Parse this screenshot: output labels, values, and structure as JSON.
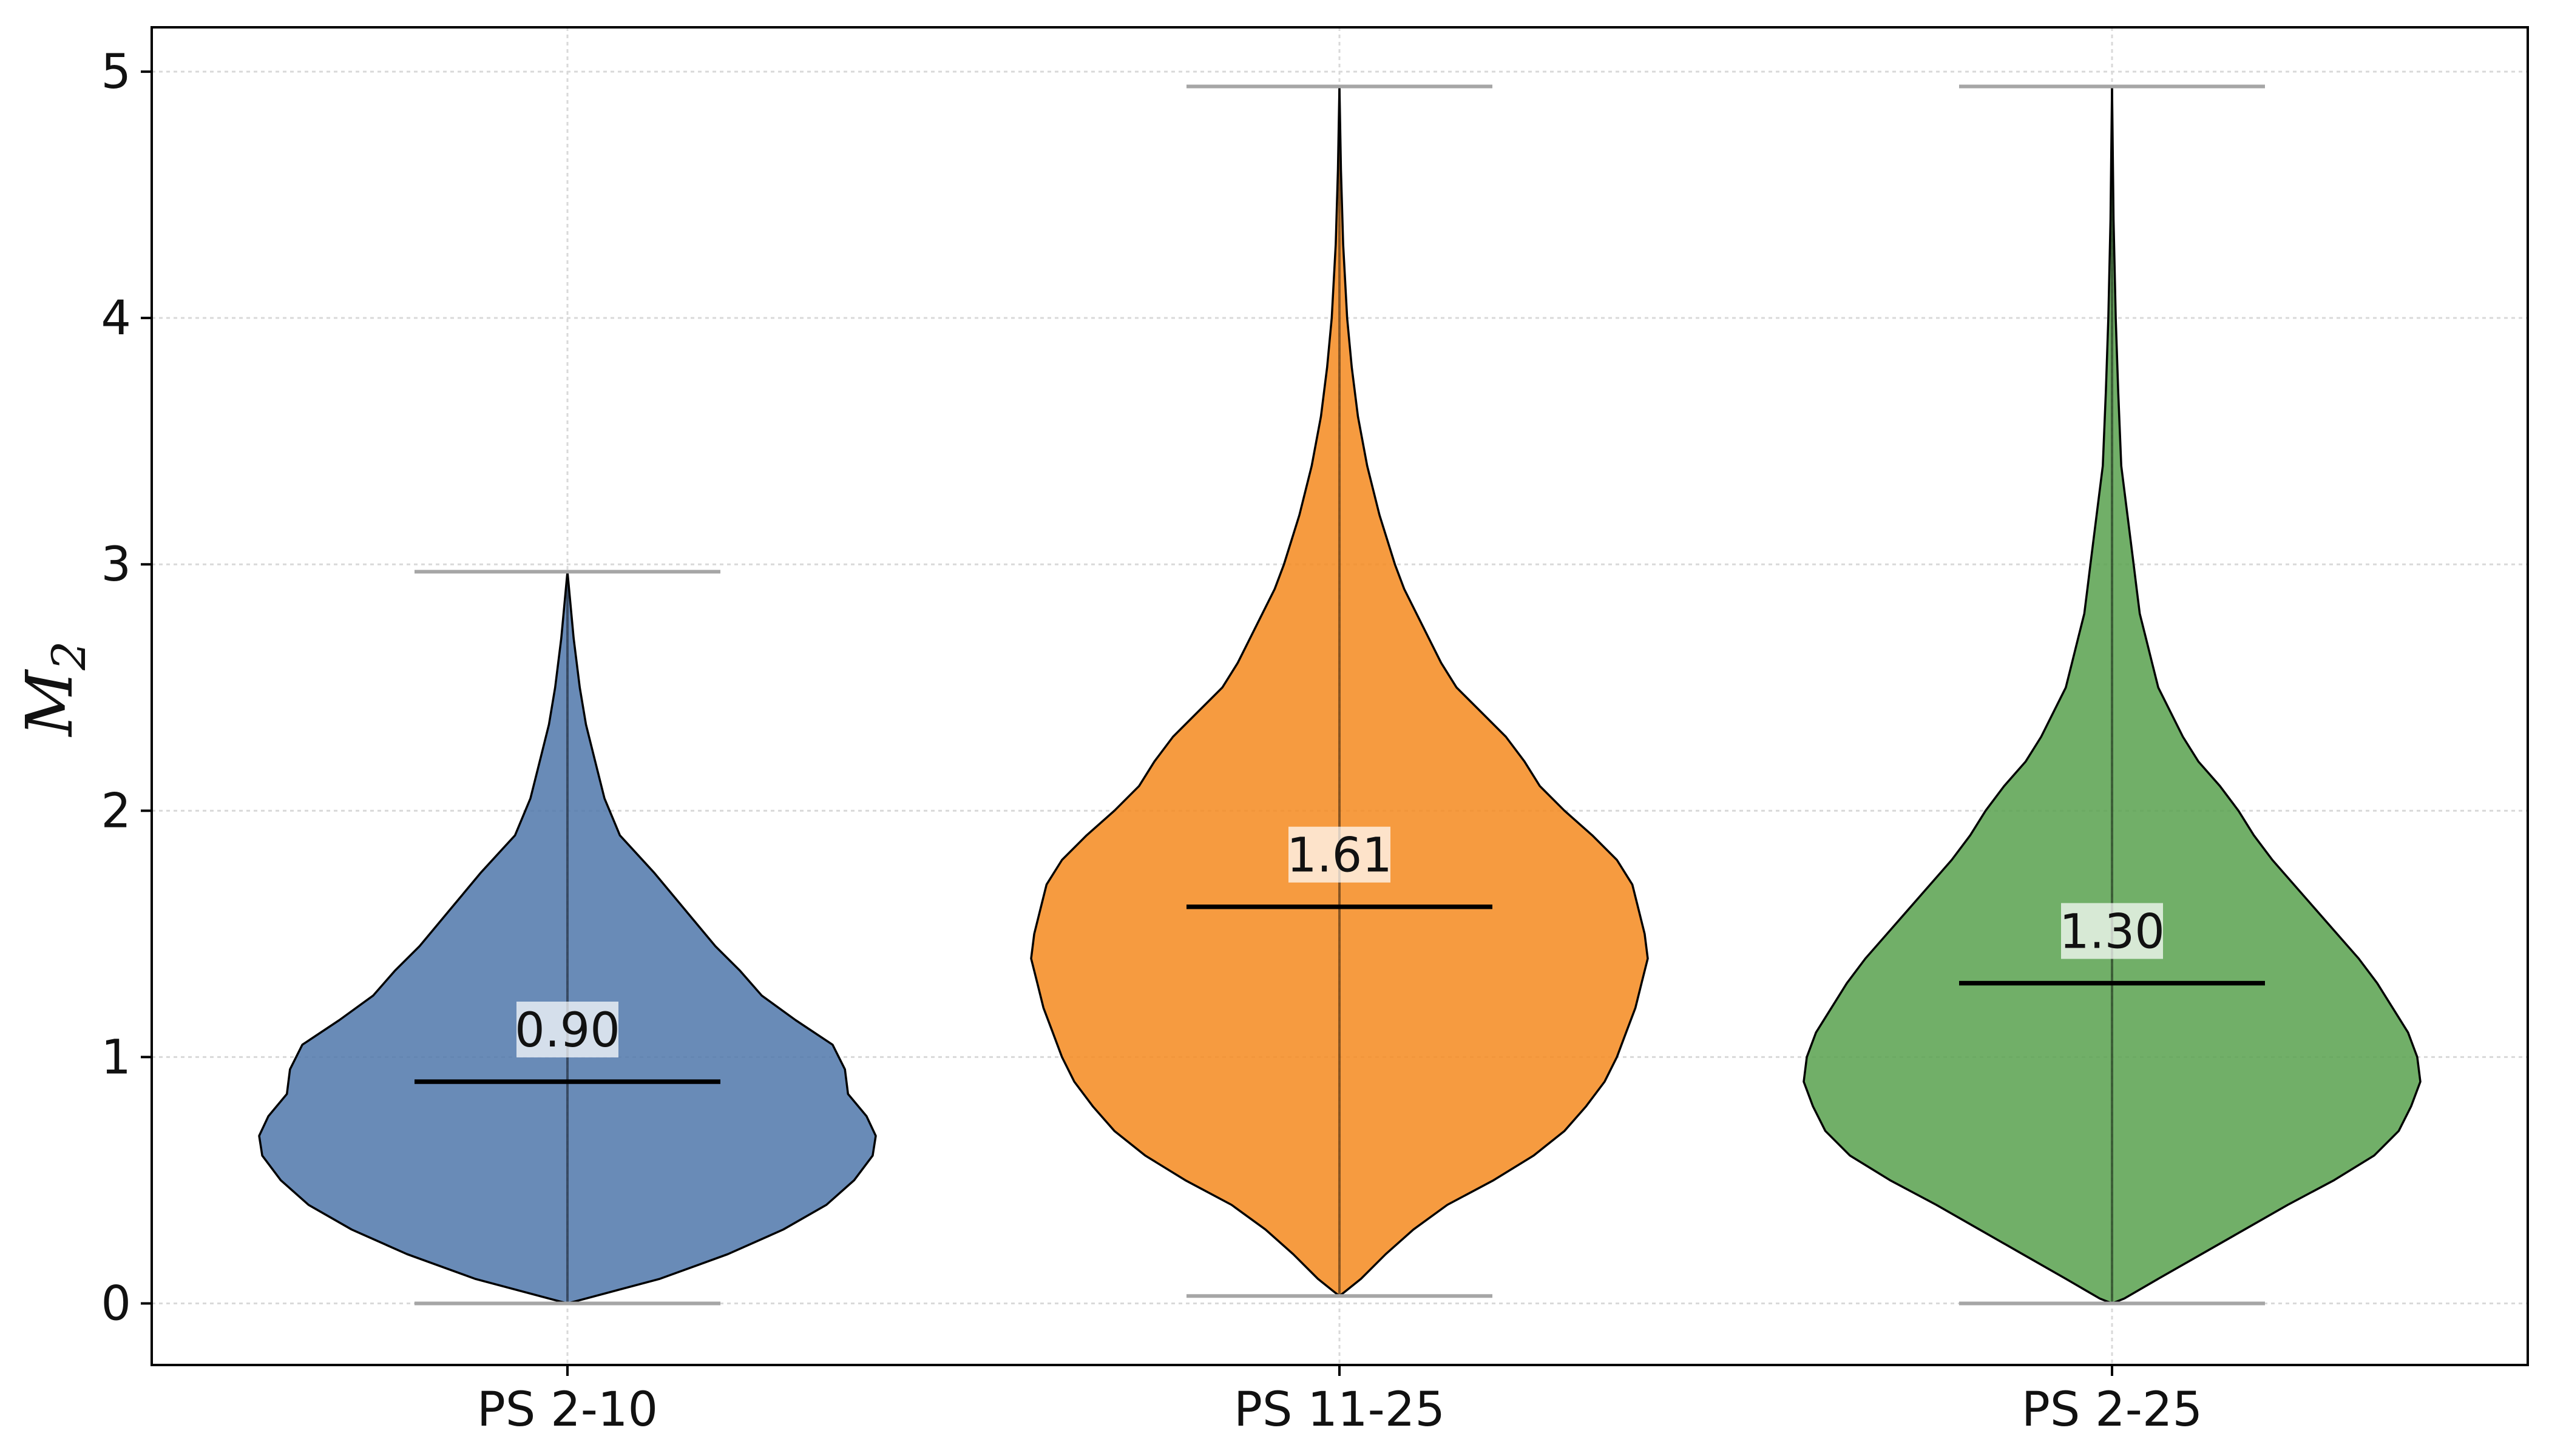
{
  "chart_data": {
    "type": "violin",
    "title": "",
    "xlabel": "",
    "ylabel": "M",
    "ylabel_subscript": "2",
    "ylim": [
      -0.25,
      5.18
    ],
    "yticks": [
      0,
      1,
      2,
      3,
      4,
      5
    ],
    "grid": true,
    "categories": [
      "PS 2-10",
      "PS 11-25",
      "PS 2-25"
    ],
    "series": [
      {
        "name": "PS 2-10",
        "color": "#4f77aa",
        "min": 0.0,
        "max": 2.97,
        "median": 0.9,
        "median_label": "0.90",
        "density_profile": [
          [
            0.0,
            0.0
          ],
          [
            0.02,
            0.06
          ],
          [
            0.1,
            0.3
          ],
          [
            0.2,
            0.52
          ],
          [
            0.3,
            0.7
          ],
          [
            0.4,
            0.84
          ],
          [
            0.5,
            0.93
          ],
          [
            0.6,
            0.99
          ],
          [
            0.68,
            1.0
          ],
          [
            0.76,
            0.97
          ],
          [
            0.85,
            0.91
          ],
          [
            0.95,
            0.9
          ],
          [
            1.05,
            0.86
          ],
          [
            1.15,
            0.74
          ],
          [
            1.25,
            0.63
          ],
          [
            1.35,
            0.56
          ],
          [
            1.45,
            0.48
          ],
          [
            1.6,
            0.38
          ],
          [
            1.75,
            0.28
          ],
          [
            1.9,
            0.17
          ],
          [
            2.05,
            0.12
          ],
          [
            2.2,
            0.09
          ],
          [
            2.35,
            0.06
          ],
          [
            2.5,
            0.04
          ],
          [
            2.7,
            0.02
          ],
          [
            2.97,
            0.0
          ]
        ]
      },
      {
        "name": "PS 11-25",
        "color": "#f5891f",
        "min": 0.03,
        "max": 4.94,
        "median": 1.61,
        "median_label": "1.61",
        "density_profile": [
          [
            0.03,
            0.0
          ],
          [
            0.05,
            0.02
          ],
          [
            0.1,
            0.07
          ],
          [
            0.2,
            0.15
          ],
          [
            0.3,
            0.24
          ],
          [
            0.4,
            0.35
          ],
          [
            0.5,
            0.5
          ],
          [
            0.6,
            0.63
          ],
          [
            0.7,
            0.73
          ],
          [
            0.8,
            0.8
          ],
          [
            0.9,
            0.86
          ],
          [
            1.0,
            0.9
          ],
          [
            1.1,
            0.93
          ],
          [
            1.2,
            0.96
          ],
          [
            1.3,
            0.98
          ],
          [
            1.4,
            1.0
          ],
          [
            1.5,
            0.99
          ],
          [
            1.6,
            0.97
          ],
          [
            1.7,
            0.95
          ],
          [
            1.8,
            0.9
          ],
          [
            1.9,
            0.82
          ],
          [
            2.0,
            0.73
          ],
          [
            2.1,
            0.65
          ],
          [
            2.2,
            0.6
          ],
          [
            2.3,
            0.54
          ],
          [
            2.4,
            0.46
          ],
          [
            2.5,
            0.38
          ],
          [
            2.6,
            0.33
          ],
          [
            2.7,
            0.29
          ],
          [
            2.8,
            0.25
          ],
          [
            2.9,
            0.21
          ],
          [
            3.0,
            0.18
          ],
          [
            3.2,
            0.13
          ],
          [
            3.4,
            0.09
          ],
          [
            3.6,
            0.06
          ],
          [
            3.8,
            0.04
          ],
          [
            4.0,
            0.025
          ],
          [
            4.3,
            0.012
          ],
          [
            4.6,
            0.005
          ],
          [
            4.94,
            0.0
          ]
        ]
      },
      {
        "name": "PS 2-25",
        "color": "#58a14e",
        "min": 0.0,
        "max": 4.94,
        "median": 1.3,
        "median_label": "1.30",
        "density_profile": [
          [
            0.0,
            0.0
          ],
          [
            0.02,
            0.04
          ],
          [
            0.1,
            0.15
          ],
          [
            0.2,
            0.29
          ],
          [
            0.3,
            0.43
          ],
          [
            0.4,
            0.57
          ],
          [
            0.5,
            0.72
          ],
          [
            0.6,
            0.85
          ],
          [
            0.7,
            0.93
          ],
          [
            0.8,
            0.97
          ],
          [
            0.9,
            1.0
          ],
          [
            1.0,
            0.99
          ],
          [
            1.1,
            0.96
          ],
          [
            1.2,
            0.91
          ],
          [
            1.3,
            0.86
          ],
          [
            1.4,
            0.8
          ],
          [
            1.5,
            0.73
          ],
          [
            1.6,
            0.66
          ],
          [
            1.7,
            0.59
          ],
          [
            1.8,
            0.52
          ],
          [
            1.9,
            0.46
          ],
          [
            2.0,
            0.41
          ],
          [
            2.1,
            0.35
          ],
          [
            2.2,
            0.28
          ],
          [
            2.3,
            0.23
          ],
          [
            2.4,
            0.19
          ],
          [
            2.5,
            0.15
          ],
          [
            2.6,
            0.13
          ],
          [
            2.7,
            0.11
          ],
          [
            2.8,
            0.09
          ],
          [
            2.9,
            0.08
          ],
          [
            3.0,
            0.07
          ],
          [
            3.2,
            0.05
          ],
          [
            3.4,
            0.03
          ],
          [
            3.7,
            0.02
          ],
          [
            4.0,
            0.012
          ],
          [
            4.4,
            0.005
          ],
          [
            4.94,
            0.0
          ]
        ]
      }
    ]
  }
}
